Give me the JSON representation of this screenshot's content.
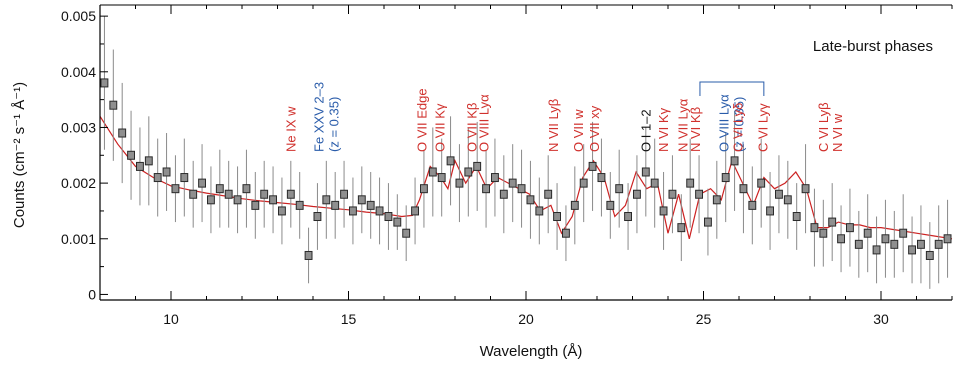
{
  "chart_data": {
    "type": "line",
    "title": "",
    "xlabel": "Wavelength (Å)",
    "ylabel": "Counts (cm⁻² s⁻¹ Å⁻¹)",
    "xlim": [
      8.0,
      32.0
    ],
    "ylim": [
      -0.0001,
      0.0052
    ],
    "x_ticks": [
      10,
      15,
      20,
      25,
      30
    ],
    "y_ticks": [
      0,
      0.001,
      0.002,
      0.003,
      0.004,
      0.005
    ],
    "y_tick_labels": [
      "0",
      "0.001",
      "0.002",
      "0.003",
      "0.004",
      "0.005"
    ],
    "grid": false,
    "panel_label": "Late-burst phases",
    "colors": {
      "data": "#333333",
      "errorbar": "#8a8a8a",
      "model": "#cc2222",
      "label_red": "#d0312d",
      "label_blue": "#2a5caa",
      "label_black": "#111111",
      "axis": "#000000"
    },
    "series": [
      {
        "role": "data",
        "x": [
          8.0,
          8.25,
          8.5,
          8.75,
          9.0,
          9.25,
          9.5,
          9.75,
          10.0,
          10.25,
          10.5,
          10.75,
          11.0,
          11.25,
          11.5,
          11.75,
          12.0,
          12.25,
          12.5,
          12.75,
          13.0,
          13.25,
          13.5,
          13.75,
          14.0,
          14.25,
          14.5,
          14.75,
          15.0,
          15.25,
          15.5,
          15.75,
          16.0,
          16.25,
          16.5,
          16.75,
          17.0,
          17.25,
          17.5,
          17.75,
          18.0,
          18.25,
          18.5,
          18.75,
          19.0,
          19.25,
          19.5,
          19.75,
          20.0,
          20.25,
          20.5,
          20.75,
          21.0,
          21.25,
          21.5,
          21.75,
          22.0,
          22.25,
          22.5,
          22.75,
          23.0,
          23.25,
          23.5,
          23.75,
          24.0,
          24.25,
          24.5,
          24.75,
          25.0,
          25.25,
          25.5,
          25.75,
          26.0,
          26.25,
          26.5,
          26.75,
          27.0,
          27.25,
          27.5,
          27.75,
          28.0,
          28.25,
          28.5,
          28.75,
          29.0,
          29.25,
          29.5,
          29.75,
          30.0,
          30.25,
          30.5,
          30.75,
          31.0,
          31.25,
          31.5,
          31.75
        ],
        "y": [
          0.0038,
          0.0034,
          0.0029,
          0.0025,
          0.0023,
          0.0024,
          0.0021,
          0.0022,
          0.0019,
          0.0021,
          0.0018,
          0.002,
          0.0017,
          0.0019,
          0.0018,
          0.0017,
          0.0019,
          0.0016,
          0.0018,
          0.0017,
          0.0015,
          0.0018,
          0.0016,
          0.0007,
          0.0014,
          0.0017,
          0.0016,
          0.0018,
          0.0015,
          0.0017,
          0.0016,
          0.0015,
          0.0014,
          0.0013,
          0.0011,
          0.0015,
          0.0019,
          0.0022,
          0.0021,
          0.0024,
          0.002,
          0.0022,
          0.0023,
          0.0019,
          0.0021,
          0.0018,
          0.002,
          0.0019,
          0.0017,
          0.0015,
          0.0018,
          0.0014,
          0.0011,
          0.0016,
          0.002,
          0.0023,
          0.0021,
          0.0016,
          0.0019,
          0.0014,
          0.0018,
          0.0022,
          0.002,
          0.0015,
          0.0018,
          0.0012,
          0.002,
          0.0018,
          0.0013,
          0.0017,
          0.0021,
          0.0024,
          0.0019,
          0.0016,
          0.002,
          0.0015,
          0.0018,
          0.0017,
          0.0014,
          0.0019,
          0.0012,
          0.0011,
          0.0013,
          0.001,
          0.0012,
          0.0009,
          0.0011,
          0.0008,
          0.001,
          0.0009,
          0.0011,
          0.0008,
          0.0009,
          0.0007,
          0.0009,
          0.001
        ],
        "yerr": [
          0.0012,
          0.001,
          0.0009,
          0.0008,
          0.0007,
          0.0008,
          0.0007,
          0.0007,
          0.0006,
          0.0007,
          0.0006,
          0.0007,
          0.0006,
          0.0007,
          0.0006,
          0.0006,
          0.0007,
          0.0006,
          0.0006,
          0.0006,
          0.0006,
          0.0006,
          0.0006,
          0.0005,
          0.0006,
          0.0007,
          0.0006,
          0.0006,
          0.0006,
          0.0006,
          0.0006,
          0.0006,
          0.0006,
          0.0005,
          0.0005,
          0.0006,
          0.0007,
          0.0008,
          0.0007,
          0.0008,
          0.0007,
          0.0008,
          0.0008,
          0.0007,
          0.0007,
          0.0007,
          0.0007,
          0.0007,
          0.0007,
          0.0006,
          0.0007,
          0.0006,
          0.0005,
          0.0007,
          0.0007,
          0.0008,
          0.0007,
          0.0006,
          0.0007,
          0.0006,
          0.0007,
          0.0008,
          0.0008,
          0.0007,
          0.0007,
          0.0006,
          0.0008,
          0.0007,
          0.0006,
          0.0007,
          0.0008,
          0.0009,
          0.0008,
          0.0007,
          0.0008,
          0.0007,
          0.0007,
          0.0007,
          0.0006,
          0.0008,
          0.0007,
          0.0006,
          0.0007,
          0.0006,
          0.0007,
          0.0006,
          0.0007,
          0.0006,
          0.0007,
          0.0006,
          0.0007,
          0.0006,
          0.0007,
          0.0006,
          0.0007,
          0.0007
        ]
      },
      {
        "role": "model",
        "x": [
          8.0,
          8.5,
          9.0,
          9.5,
          10.0,
          10.5,
          11.0,
          11.5,
          12.0,
          12.5,
          13.0,
          13.5,
          14.0,
          14.5,
          15.0,
          15.5,
          16.0,
          16.5,
          16.8,
          17.0,
          17.3,
          17.6,
          17.8,
          18.0,
          18.3,
          18.6,
          18.9,
          19.2,
          19.5,
          19.8,
          20.1,
          20.4,
          20.7,
          21.0,
          21.3,
          21.6,
          21.9,
          22.2,
          22.5,
          22.8,
          23.1,
          23.4,
          23.7,
          24.0,
          24.3,
          24.6,
          24.9,
          25.2,
          25.5,
          25.8,
          26.1,
          26.4,
          26.7,
          27.0,
          27.3,
          27.6,
          27.9,
          28.2,
          28.5,
          28.8,
          29.1,
          29.4,
          29.7,
          30.0,
          30.5,
          31.0,
          31.5,
          32.0
        ],
        "y": [
          0.0032,
          0.0027,
          0.0023,
          0.0021,
          0.00195,
          0.00188,
          0.00182,
          0.00177,
          0.00172,
          0.00168,
          0.00165,
          0.00162,
          0.00158,
          0.00155,
          0.00152,
          0.00148,
          0.00145,
          0.0014,
          0.00142,
          0.0017,
          0.0023,
          0.0021,
          0.0019,
          0.0024,
          0.002,
          0.0023,
          0.0019,
          0.0021,
          0.002,
          0.0019,
          0.0018,
          0.0015,
          0.0016,
          0.0011,
          0.0014,
          0.0021,
          0.0024,
          0.0021,
          0.0014,
          0.0016,
          0.0022,
          0.0019,
          0.002,
          0.0011,
          0.0018,
          0.001,
          0.0018,
          0.0019,
          0.0017,
          0.0024,
          0.002,
          0.0016,
          0.0021,
          0.0019,
          0.002,
          0.0022,
          0.0019,
          0.0012,
          0.0012,
          0.0013,
          0.00125,
          0.00125,
          0.0012,
          0.0012,
          0.00115,
          0.0011,
          0.00105,
          0.001
        ]
      }
    ],
    "annotations": [
      {
        "lines": [
          "Ne IX w"
        ],
        "x": 13.5,
        "color": "red"
      },
      {
        "lines": [
          "Fe XXV 2–3",
          "(z = 0.35)"
        ],
        "x": 14.3,
        "color": "blue"
      },
      {
        "lines": [
          "O VII Edge"
        ],
        "x": 17.2,
        "color": "red"
      },
      {
        "lines": [
          "O VII Kγ"
        ],
        "x": 17.7,
        "color": "red"
      },
      {
        "lines": [
          "O VII Kβ"
        ],
        "x": 18.6,
        "color": "red"
      },
      {
        "lines": [
          "O VIII Lyα"
        ],
        "x": 18.95,
        "color": "red"
      },
      {
        "lines": [
          "N VII Lyβ"
        ],
        "x": 20.9,
        "color": "red"
      },
      {
        "lines": [
          "O VII w"
        ],
        "x": 21.6,
        "color": "red"
      },
      {
        "lines": [
          "O VII xy"
        ],
        "x": 22.05,
        "color": "red"
      },
      {
        "lines": [
          "O I 1–2"
        ],
        "x": 23.5,
        "color": "black"
      },
      {
        "lines": [
          "N VI Kγ"
        ],
        "x": 24.0,
        "color": "red"
      },
      {
        "lines": [
          "N VII Lyα"
        ],
        "x": 24.55,
        "color": "red"
      },
      {
        "lines": [
          "N VI Kβ"
        ],
        "x": 24.9,
        "color": "red"
      },
      {
        "lines": [
          "O VIII Lyα",
          "(z = 0.35)"
        ],
        "x": 25.7,
        "color": "blue"
      },
      {
        "lines": [
          "C VI Lyδ"
        ],
        "x": 26.1,
        "color": "red"
      },
      {
        "lines": [
          "C VI Lyγ"
        ],
        "x": 26.8,
        "color": "red"
      },
      {
        "lines": [
          "C VI Lyβ"
        ],
        "x": 28.5,
        "color": "red"
      },
      {
        "lines": [
          "N VI w"
        ],
        "x": 28.9,
        "color": "red"
      }
    ]
  }
}
